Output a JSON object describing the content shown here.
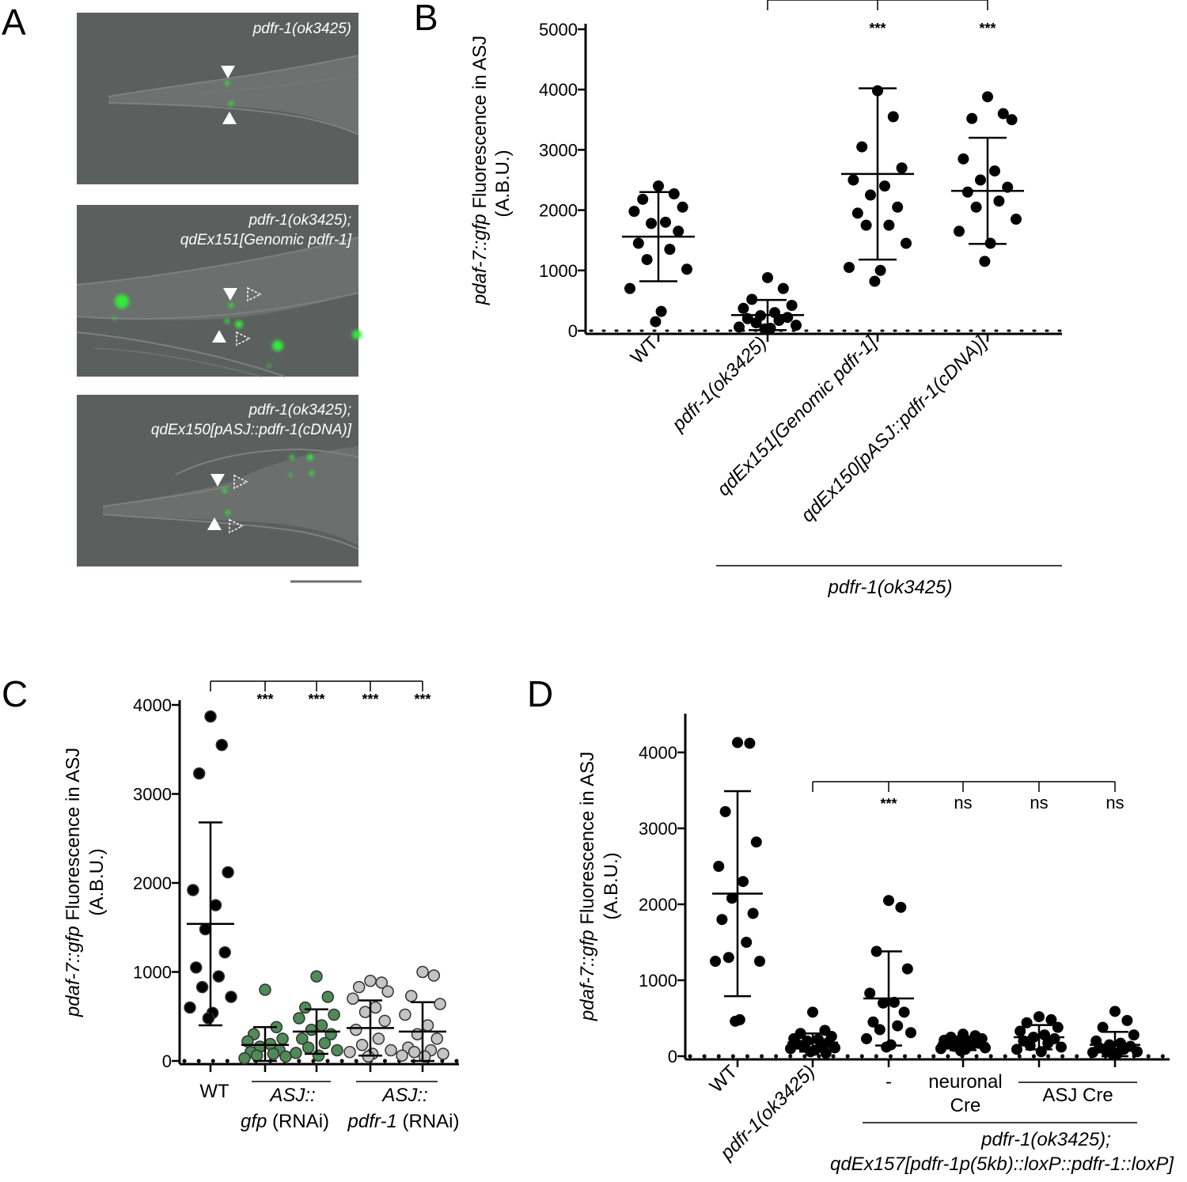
{
  "panel_letters": [
    "A",
    "B",
    "C",
    "D"
  ],
  "panel_a": {
    "images": [
      {
        "caption_lines": [
          "pdfr-1(ok3425)"
        ]
      },
      {
        "caption_lines": [
          "pdfr-1(ok3425);",
          "qdEx151[Genomic pdfr-1]"
        ]
      },
      {
        "caption_lines": [
          "pdfr-1(ok3425);",
          "qdEx150[pASJ::pdfr-1(cDNA)]"
        ]
      }
    ],
    "colors": {
      "background": "#5a5e5c",
      "gfp": "#34e63c"
    }
  },
  "chart_data": [
    {
      "panel": "B",
      "type": "scatter",
      "ylabel_italic": "pdaf-7::gfp",
      "ylabel_rest": " Fluorescence in ASJ",
      "ylabel_line2": "(A.B.U.)",
      "ylim": [
        0,
        5000
      ],
      "yticks": [
        0,
        1000,
        2000,
        3000,
        4000,
        5000
      ],
      "categories": [
        "WT",
        "pdfr-1(ok3425)",
        "qdEx151[Genomic pdfr-1]",
        "qdEx150[pASJ::pdfr-1(cDNA)]"
      ],
      "group_label": "pdfr-1(ok3425)",
      "significance": [
        "",
        "",
        "***",
        "***"
      ],
      "series": [
        {
          "name": "WT",
          "mean": 1560,
          "sd": 740,
          "values": [
            2400,
            2270,
            2180,
            2050,
            1980,
            1800,
            1780,
            1650,
            1450,
            1350,
            1180,
            1020,
            700,
            320,
            150
          ]
        },
        {
          "name": "pdfr-1(ok3425)",
          "mean": 260,
          "sd": 250,
          "values": [
            880,
            700,
            520,
            420,
            370,
            300,
            250,
            220,
            200,
            170,
            130,
            90,
            60,
            40,
            30
          ]
        },
        {
          "name": "qdEx151[Genomic pdfr-1]",
          "mean": 2600,
          "sd": 1420,
          "values": [
            3980,
            3550,
            3050,
            2700,
            2500,
            2400,
            2250,
            2050,
            1950,
            1750,
            1750,
            1450,
            1050,
            1000,
            820
          ]
        },
        {
          "name": "qdEx150[pASJ::pdfr-1(cDNA)]",
          "mean": 2320,
          "sd": 880,
          "values": [
            3880,
            3600,
            3520,
            3500,
            2850,
            2650,
            2500,
            2380,
            2300,
            2150,
            2050,
            1850,
            1650,
            1450,
            1150
          ]
        }
      ]
    },
    {
      "panel": "C",
      "type": "scatter",
      "ylabel_italic": "pdaf-7::gfp",
      "ylabel_rest": " Fluorescence in ASJ",
      "ylabel_line2": "(A.B.U.)",
      "ylim": [
        0,
        4000
      ],
      "yticks": [
        0,
        1000,
        2000,
        3000,
        4000
      ],
      "categories": [
        "WT",
        "ASJ::gfp (RNAi)",
        "ASJ::gfp (RNAi)",
        "ASJ::pdfr-1 (RNAi)",
        "ASJ::pdfr-1 (RNAi)"
      ],
      "x_label_wt": "WT",
      "group_labels": [
        {
          "line1": "ASJ::",
          "line2_italic": "gfp",
          "line2_rest": " (RNAi)"
        },
        {
          "line1": "ASJ::",
          "line2_italic": "pdfr-1",
          "line2_rest": " (RNAi)"
        }
      ],
      "significance": [
        "",
        "***",
        "***",
        "***",
        "***"
      ],
      "series": [
        {
          "name": "WT",
          "color": "#000000",
          "mean": 1540,
          "sd": 1140,
          "values": [
            3870,
            3550,
            3230,
            2120,
            1920,
            1750,
            1480,
            1220,
            1050,
            950,
            830,
            720,
            600,
            540,
            480
          ]
        },
        {
          "name": "ASJ::gfp (RNAi) 1",
          "color": "#4f8a57",
          "mean": 180,
          "sd": 200,
          "values": [
            800,
            380,
            300,
            250,
            220,
            190,
            160,
            120,
            100,
            80,
            60,
            50,
            30
          ]
        },
        {
          "name": "ASJ::gfp (RNAi) 2",
          "color": "#4f8a57",
          "mean": 330,
          "sd": 250,
          "values": [
            950,
            720,
            600,
            520,
            480,
            400,
            350,
            300,
            250,
            200,
            150,
            120,
            90,
            60
          ]
        },
        {
          "name": "ASJ::pdfr-1 (RNAi) 1",
          "color": "#c4c4c4",
          "mean": 370,
          "sd": 310,
          "values": [
            900,
            880,
            830,
            780,
            700,
            600,
            550,
            450,
            350,
            250,
            180,
            120,
            100,
            80,
            50
          ]
        },
        {
          "name": "ASJ::pdfr-1 (RNAi) 2",
          "color": "#c4c4c4",
          "mean": 330,
          "sd": 330,
          "values": [
            1000,
            960,
            730,
            640,
            520,
            400,
            300,
            250,
            150,
            120,
            100,
            80,
            60,
            50
          ]
        }
      ]
    },
    {
      "panel": "D",
      "type": "scatter",
      "ylabel_italic": "pdaf-7::gfp",
      "ylabel_rest": " Fluorescence in ASJ",
      "ylabel_line2": "(A.B.U.)",
      "ylim": [
        0,
        4500
      ],
      "yticks": [
        0,
        1000,
        2000,
        3000,
        4000
      ],
      "categories": [
        "WT",
        "pdfr-1(ok3425)",
        "-",
        "neuronal Cre",
        "ASJ Cre",
        "ASJ Cre"
      ],
      "sub_labels": {
        "dash": "-",
        "neuronal_line1": "neuronal",
        "neuronal_line2": "Cre",
        "asj": "ASJ Cre"
      },
      "group_label_line1": "pdfr-1(ok3425);",
      "group_label_line2": "qdEx157[pdfr-1p(5kb)::loxP::pdfr-1::loxP]",
      "significance": [
        "",
        "",
        "***",
        "ns",
        "ns",
        "ns"
      ],
      "series": [
        {
          "name": "WT",
          "mean": 2140,
          "sd": 1350,
          "values": [
            4130,
            4120,
            3220,
            2820,
            2500,
            2300,
            2080,
            1880,
            1800,
            1500,
            1300,
            1250,
            1250,
            480,
            460
          ]
        },
        {
          "name": "pdfr-1(ok3425)",
          "mean": 180,
          "sd": 120,
          "values": [
            580,
            340,
            300,
            260,
            230,
            220,
            200,
            180,
            160,
            140,
            120,
            110,
            100,
            80,
            60,
            40
          ]
        },
        {
          "name": "-",
          "mean": 760,
          "sd": 620,
          "values": [
            2050,
            1960,
            1380,
            1150,
            830,
            710,
            700,
            580,
            450,
            400,
            350,
            310,
            230,
            150,
            120
          ]
        },
        {
          "name": "neuronal Cre",
          "mean": 170,
          "sd": 90,
          "values": [
            290,
            270,
            250,
            230,
            210,
            200,
            180,
            170,
            160,
            150,
            130,
            110,
            100,
            90,
            70
          ]
        },
        {
          "name": "ASJ Cre 1",
          "mean": 250,
          "sd": 160,
          "values": [
            520,
            480,
            440,
            380,
            330,
            280,
            250,
            230,
            200,
            170,
            140,
            120,
            90,
            60
          ]
        },
        {
          "name": "ASJ Cre 2",
          "mean": 150,
          "sd": 170,
          "values": [
            590,
            470,
            380,
            280,
            200,
            170,
            150,
            130,
            110,
            90,
            70,
            60,
            50,
            40,
            30
          ]
        }
      ]
    }
  ]
}
